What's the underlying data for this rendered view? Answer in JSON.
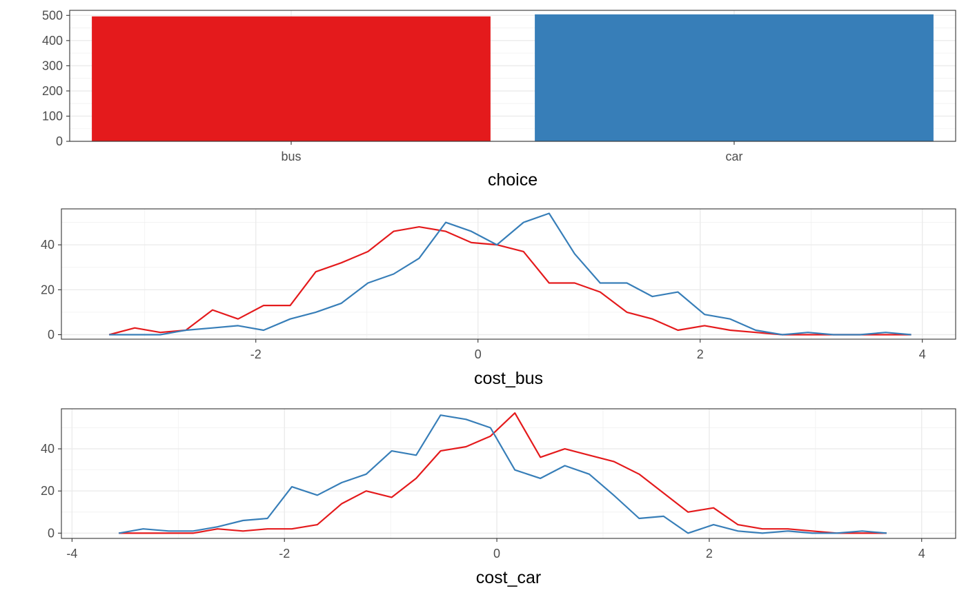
{
  "chart_data": [
    {
      "type": "bar",
      "xlabel": "choice",
      "categories": [
        "bus",
        "car"
      ],
      "values": [
        496,
        504
      ],
      "colors": [
        "#E41A1C",
        "#377EB8"
      ],
      "ylim": [
        0,
        520
      ],
      "yticks": [
        0,
        100,
        200,
        300,
        400,
        500
      ],
      "yticklabels": [
        "0",
        "100",
        "200",
        "300",
        "400",
        "500"
      ],
      "grid": true
    },
    {
      "type": "line",
      "xlabel": "cost_bus",
      "xlim": [
        -3.75,
        4.3
      ],
      "ylim": [
        -2,
        56
      ],
      "xticks": [
        -2,
        0,
        2,
        4
      ],
      "xticklabels": [
        "-2",
        "0",
        "2",
        "4"
      ],
      "yticks": [
        0,
        20,
        40
      ],
      "yticklabels": [
        "0",
        "20",
        "40"
      ],
      "grid": true,
      "x": [
        -3.32,
        -3.09,
        -2.86,
        -2.63,
        -2.39,
        -2.16,
        -1.93,
        -1.69,
        -1.46,
        -1.23,
        -0.99,
        -0.76,
        -0.53,
        -0.29,
        -0.06,
        0.17,
        0.41,
        0.64,
        0.87,
        1.1,
        1.34,
        1.57,
        1.8,
        2.04,
        2.27,
        2.5,
        2.74,
        2.97,
        3.2,
        3.44,
        3.67,
        3.9
      ],
      "series": [
        {
          "color": "#E41A1C",
          "values": [
            0,
            3,
            1,
            2,
            11,
            7,
            13,
            13,
            28,
            32,
            37,
            46,
            48,
            46,
            41,
            40,
            37,
            23,
            23,
            19,
            10,
            7,
            2,
            4,
            2,
            1,
            0,
            0,
            0,
            0,
            0,
            0
          ]
        },
        {
          "color": "#377EB8",
          "values": [
            0,
            0,
            0,
            2,
            3,
            4,
            2,
            7,
            10,
            14,
            23,
            27,
            34,
            50,
            46,
            40,
            50,
            54,
            36,
            23,
            23,
            17,
            19,
            9,
            7,
            2,
            0,
            1,
            0,
            0,
            1,
            0
          ]
        }
      ]
    },
    {
      "type": "line",
      "xlabel": "cost_car",
      "xlim": [
        -4.1,
        4.32
      ],
      "ylim": [
        -2.5,
        59
      ],
      "xticks": [
        -4,
        -2,
        0,
        2,
        4
      ],
      "xticklabels": [
        "-4",
        "-2",
        "0",
        "2",
        "4"
      ],
      "yticks": [
        0,
        20,
        40
      ],
      "yticklabels": [
        "0",
        "20",
        "40"
      ],
      "grid": true,
      "x": [
        -3.56,
        -3.33,
        -3.09,
        -2.86,
        -2.63,
        -2.39,
        -2.16,
        -1.93,
        -1.69,
        -1.46,
        -1.23,
        -0.99,
        -0.76,
        -0.53,
        -0.29,
        -0.06,
        0.17,
        0.41,
        0.64,
        0.87,
        1.1,
        1.34,
        1.57,
        1.8,
        2.04,
        2.27,
        2.5,
        2.74,
        2.97,
        3.2,
        3.44,
        3.67
      ],
      "series": [
        {
          "color": "#E41A1C",
          "values": [
            0,
            0,
            0,
            0,
            2,
            1,
            2,
            2,
            4,
            14,
            20,
            17,
            26,
            39,
            41,
            46,
            57,
            36,
            40,
            37,
            34,
            28,
            19,
            10,
            12,
            4,
            2,
            2,
            1,
            0,
            0,
            0
          ]
        },
        {
          "color": "#377EB8",
          "values": [
            0,
            2,
            1,
            1,
            3,
            6,
            7,
            22,
            18,
            24,
            28,
            39,
            37,
            56,
            54,
            50,
            30,
            26,
            32,
            28,
            18,
            7,
            8,
            0,
            4,
            1,
            0,
            1,
            0,
            0,
            1,
            0
          ]
        }
      ]
    }
  ]
}
